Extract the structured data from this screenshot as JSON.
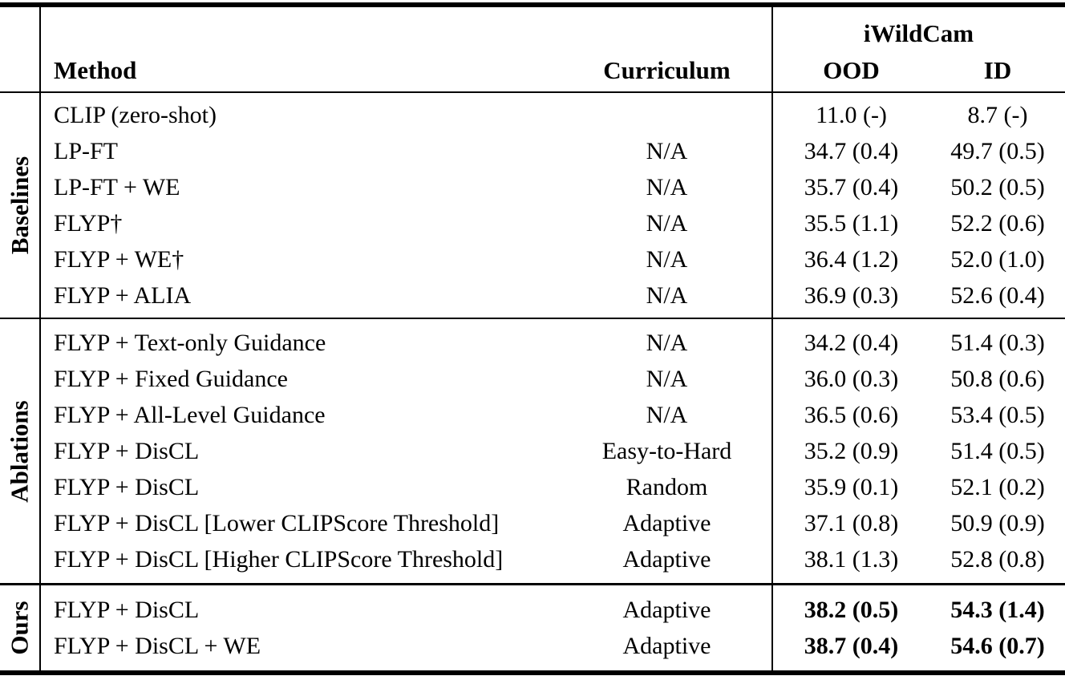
{
  "header": {
    "dataset_group": "iWildCam",
    "col_method": "Method",
    "col_curriculum": "Curriculum",
    "col_ood": "OOD",
    "col_id": "ID"
  },
  "sections": [
    {
      "label": "Baselines",
      "key": "baselines",
      "rows": [
        {
          "method": "CLIP (zero-shot)",
          "curriculum": "",
          "ood": "11.0 (-)",
          "id": "8.7 (-)",
          "emphasis": false
        },
        {
          "method": "LP-FT",
          "curriculum": "N/A",
          "ood": "34.7 (0.4)",
          "id": "49.7 (0.5)",
          "emphasis": false
        },
        {
          "method": "LP-FT + WE",
          "curriculum": "N/A",
          "ood": "35.7 (0.4)",
          "id": "50.2 (0.5)",
          "emphasis": false
        },
        {
          "method": "FLYP†",
          "curriculum": "N/A",
          "ood": "35.5 (1.1)",
          "id": "52.2 (0.6)",
          "emphasis": false
        },
        {
          "method": "FLYP + WE†",
          "curriculum": "N/A",
          "ood": "36.4 (1.2)",
          "id": "52.0 (1.0)",
          "emphasis": false
        },
        {
          "method": "FLYP + ALIA",
          "curriculum": "N/A",
          "ood": "36.9 (0.3)",
          "id": "52.6 (0.4)",
          "emphasis": false
        }
      ]
    },
    {
      "label": "Ablations",
      "key": "ablations",
      "rows": [
        {
          "method": "FLYP + Text-only Guidance",
          "curriculum": "N/A",
          "ood": "34.2 (0.4)",
          "id": "51.4 (0.3)",
          "emphasis": false
        },
        {
          "method": "FLYP + Fixed Guidance",
          "curriculum": "N/A",
          "ood": "36.0 (0.3)",
          "id": "50.8 (0.6)",
          "emphasis": false
        },
        {
          "method": "FLYP + All-Level Guidance",
          "curriculum": "N/A",
          "ood": "36.5 (0.6)",
          "id": "53.4 (0.5)",
          "emphasis": false
        },
        {
          "method": "FLYP + DisCL",
          "curriculum": "Easy-to-Hard",
          "ood": "35.2 (0.9)",
          "id": "51.4 (0.5)",
          "emphasis": false
        },
        {
          "method": "FLYP + DisCL",
          "curriculum": "Random",
          "ood": "35.9 (0.1)",
          "id": "52.1 (0.2)",
          "emphasis": false
        },
        {
          "method": "FLYP + DisCL [Lower CLIPScore Threshold]",
          "curriculum": "Adaptive",
          "ood": "37.1 (0.8)",
          "id": "50.9 (0.9)",
          "emphasis": false
        },
        {
          "method": "FLYP + DisCL [Higher CLIPScore Threshold]",
          "curriculum": "Adaptive",
          "ood": "38.1 (1.3)",
          "id": "52.8 (0.8)",
          "emphasis": false
        }
      ]
    },
    {
      "label": "Ours",
      "key": "ours",
      "rows": [
        {
          "method": "FLYP + DisCL",
          "curriculum": "Adaptive",
          "ood": "38.2 (0.5)",
          "id": "54.3 (1.4)",
          "emphasis": true
        },
        {
          "method": "FLYP + DisCL + WE",
          "curriculum": "Adaptive",
          "ood": "38.7 (0.4)",
          "id": "54.6 (0.7)",
          "emphasis": true
        }
      ]
    }
  ]
}
